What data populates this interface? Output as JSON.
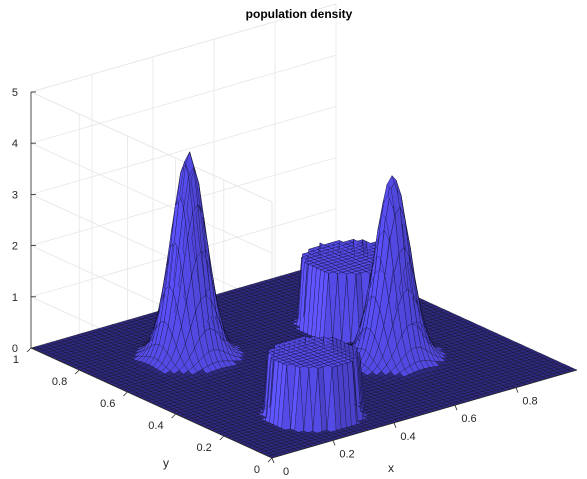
{
  "chart_data": {
    "type": "surface",
    "title": "population density",
    "xlabel": "x",
    "ylabel": "y",
    "zlabel": "",
    "xlim": [
      0,
      1
    ],
    "ylim": [
      0,
      1
    ],
    "zlim": [
      0,
      5
    ],
    "xticks": [
      "0",
      "0.2",
      "0.4",
      "0.6",
      "0.8"
    ],
    "yticks": [
      "0",
      "0.2",
      "0.4",
      "0.6",
      "0.8",
      "1"
    ],
    "zticks": [
      "0",
      "1",
      "2",
      "3",
      "4",
      "5"
    ],
    "grid": true,
    "colors": {
      "surface": "#4a42cc",
      "edge": "#000000",
      "grid": "#e6e6e6"
    },
    "features": [
      {
        "kind": "plateau",
        "center": [
          0.28,
          0.18
        ],
        "radius": 0.12,
        "height": 1.2
      },
      {
        "kind": "plateau",
        "center": [
          0.75,
          0.62
        ],
        "radius": 0.13,
        "height": 1.3
      },
      {
        "kind": "peak",
        "center": [
          0.28,
          0.7
        ],
        "height": 4.0,
        "width": 0.045
      },
      {
        "kind": "peak",
        "center": [
          0.68,
          0.36
        ],
        "height": 3.6,
        "width": 0.045
      }
    ]
  }
}
